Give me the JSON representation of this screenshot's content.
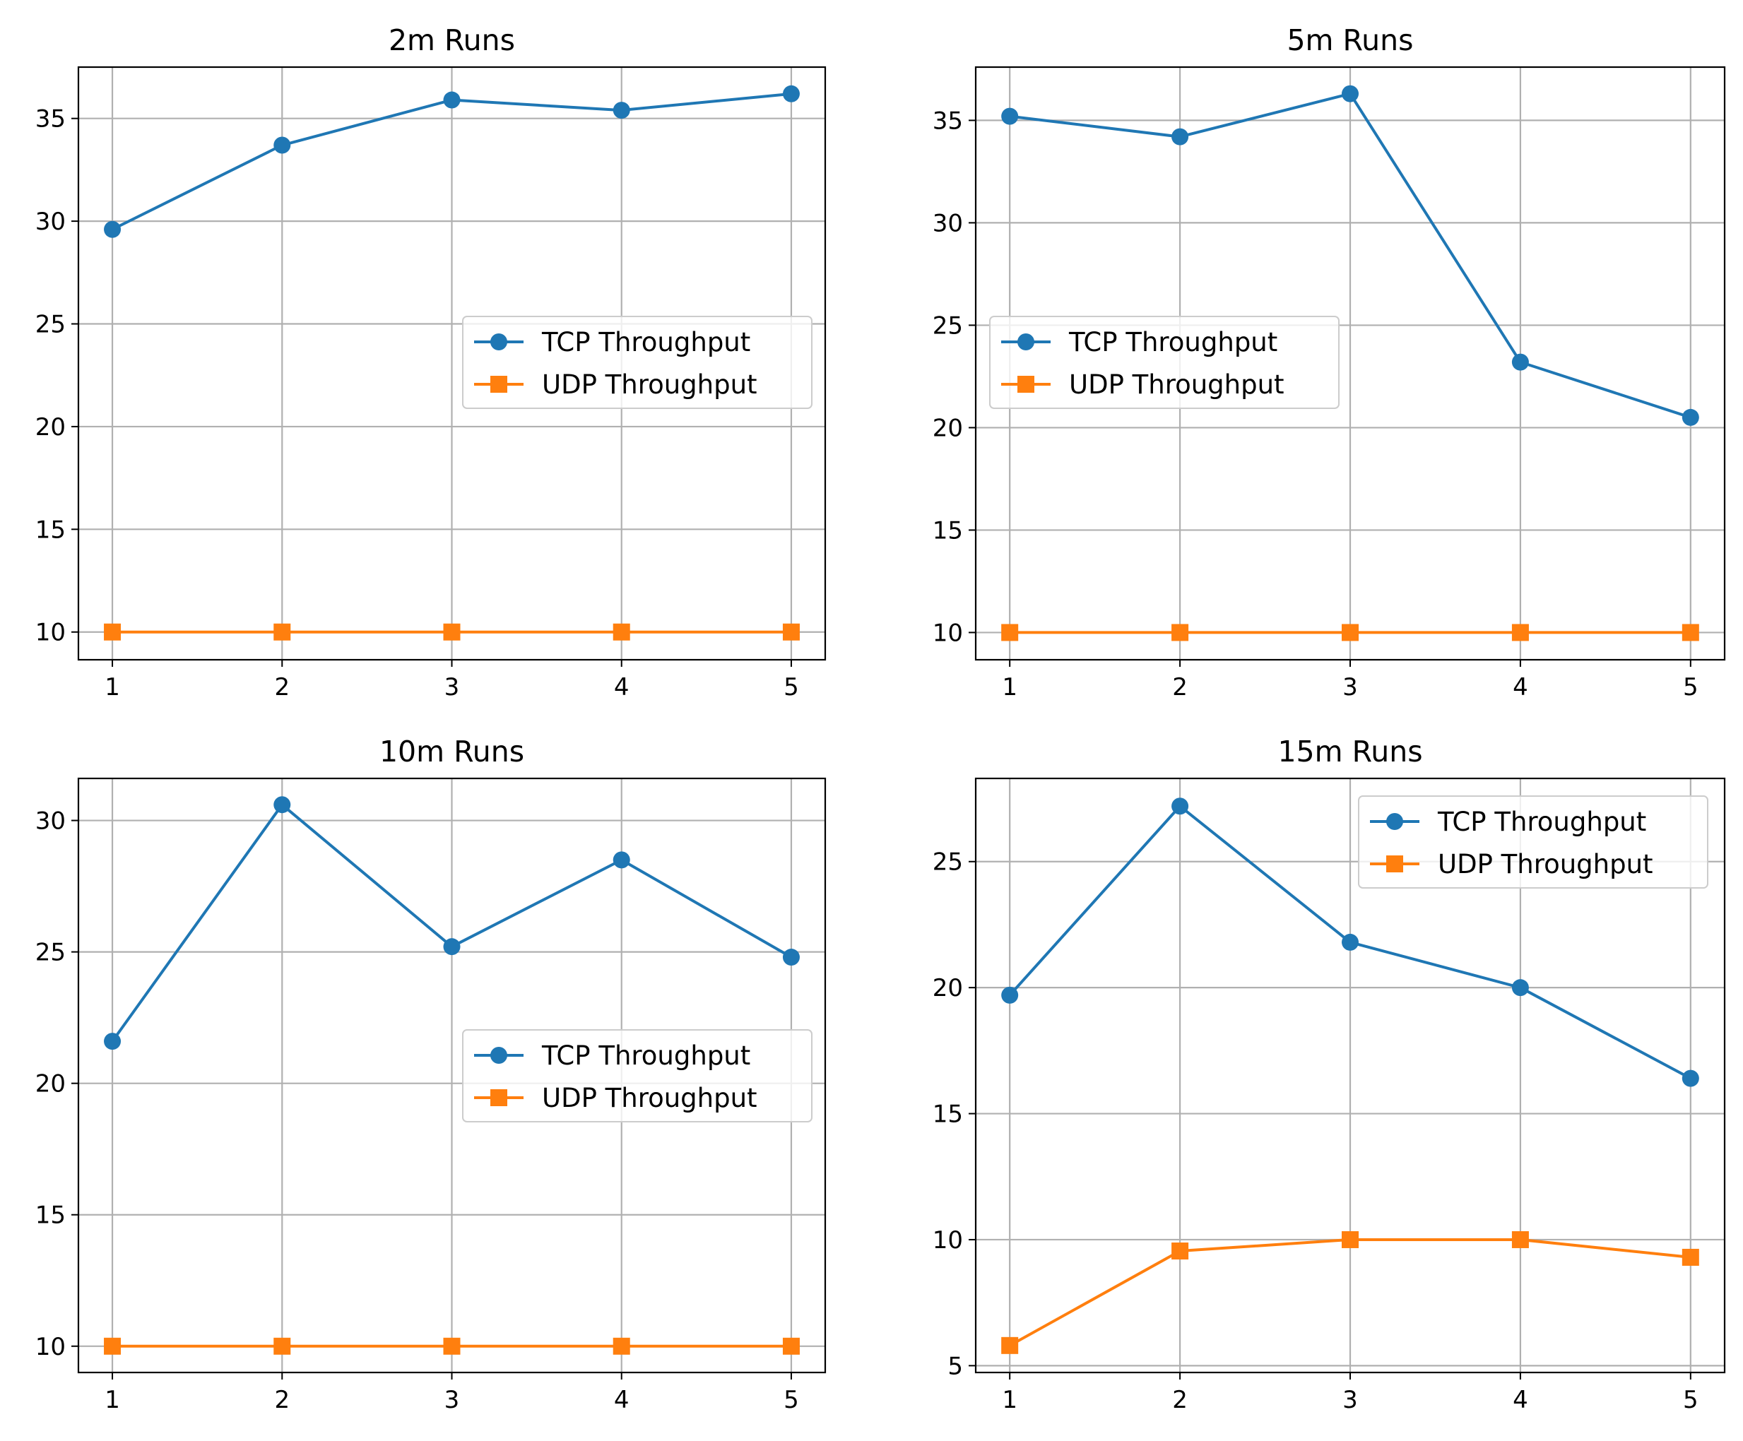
{
  "colors": {
    "tcp": "#1f77b4",
    "udp": "#ff7f0e",
    "grid": "#b0b0b0",
    "axes": "#000000",
    "background": "#ffffff"
  },
  "chart_data": [
    {
      "type": "line",
      "title": "2m Runs",
      "xlabel": "",
      "ylabel": "",
      "x": [
        1,
        2,
        3,
        4,
        5
      ],
      "xticks": [
        "1",
        "2",
        "3",
        "4",
        "5"
      ],
      "xlim": [
        0.8,
        5.2
      ],
      "ylim": [
        8.65,
        37.5
      ],
      "yticks": [
        "10",
        "15",
        "20",
        "25",
        "30",
        "35"
      ],
      "grid": true,
      "legend": "center-right",
      "series": [
        {
          "name": "TCP Throughput",
          "marker": "circle",
          "color": "#1f77b4",
          "values": [
            29.6,
            33.7,
            35.9,
            35.4,
            36.2
          ]
        },
        {
          "name": "UDP Throughput",
          "marker": "square",
          "color": "#ff7f0e",
          "values": [
            10.0,
            10.0,
            10.0,
            10.0,
            10.0
          ]
        }
      ]
    },
    {
      "type": "line",
      "title": "5m Runs",
      "xlabel": "",
      "ylabel": "",
      "x": [
        1,
        2,
        3,
        4,
        5
      ],
      "xticks": [
        "1",
        "2",
        "3",
        "4",
        "5"
      ],
      "xlim": [
        0.8,
        5.2
      ],
      "ylim": [
        8.67,
        37.6
      ],
      "yticks": [
        "10",
        "15",
        "20",
        "25",
        "30",
        "35"
      ],
      "grid": true,
      "legend": "center-left",
      "series": [
        {
          "name": "TCP Throughput",
          "marker": "circle",
          "color": "#1f77b4",
          "values": [
            35.2,
            34.2,
            36.3,
            23.2,
            20.5
          ]
        },
        {
          "name": "UDP Throughput",
          "marker": "square",
          "color": "#ff7f0e",
          "values": [
            10.0,
            10.0,
            10.0,
            10.0,
            10.0
          ]
        }
      ]
    },
    {
      "type": "line",
      "title": "10m Runs",
      "xlabel": "",
      "ylabel": "",
      "x": [
        1,
        2,
        3,
        4,
        5
      ],
      "xticks": [
        "1",
        "2",
        "3",
        "4",
        "5"
      ],
      "xlim": [
        0.8,
        5.2
      ],
      "ylim": [
        9.0,
        31.6
      ],
      "yticks": [
        "10",
        "15",
        "20",
        "25",
        "30"
      ],
      "grid": true,
      "legend": "center-right",
      "series": [
        {
          "name": "TCP Throughput",
          "marker": "circle",
          "color": "#1f77b4",
          "values": [
            21.6,
            30.6,
            25.2,
            28.5,
            24.8
          ]
        },
        {
          "name": "UDP Throughput",
          "marker": "square",
          "color": "#ff7f0e",
          "values": [
            10.0,
            10.0,
            10.0,
            10.0,
            10.0
          ]
        }
      ]
    },
    {
      "type": "line",
      "title": "15m Runs",
      "xlabel": "",
      "ylabel": "",
      "x": [
        1,
        2,
        3,
        4,
        5
      ],
      "xticks": [
        "1",
        "2",
        "3",
        "4",
        "5"
      ],
      "xlim": [
        0.8,
        5.2
      ],
      "ylim": [
        4.73,
        28.3
      ],
      "yticks": [
        "5",
        "10",
        "15",
        "20",
        "25"
      ],
      "grid": true,
      "legend": "top-right",
      "series": [
        {
          "name": "TCP Throughput",
          "marker": "circle",
          "color": "#1f77b4",
          "values": [
            19.7,
            27.2,
            21.8,
            20.0,
            16.4
          ]
        },
        {
          "name": "UDP Throughput",
          "marker": "square",
          "color": "#ff7f0e",
          "values": [
            5.8,
            9.55,
            10.0,
            10.0,
            9.3
          ]
        }
      ]
    }
  ]
}
